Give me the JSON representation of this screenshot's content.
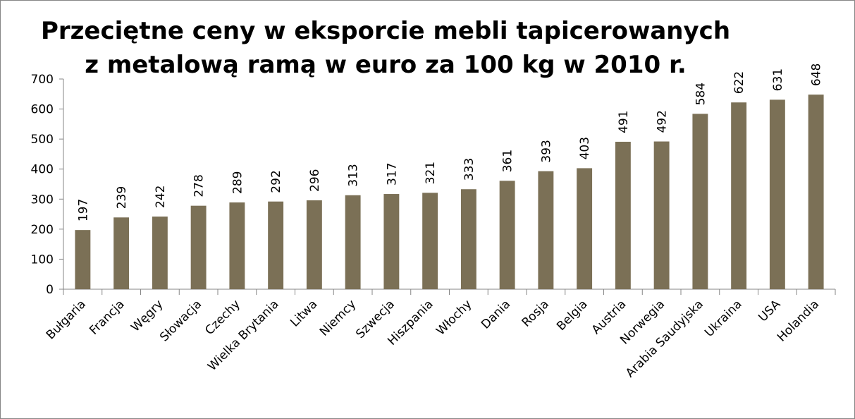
{
  "chart_data": {
    "type": "bar",
    "title": [
      "Przeciętne ceny w eksporcie mebli tapicerowanych",
      "z metalową ramą w euro za 100 kg w 2010 r."
    ],
    "categories": [
      "Bułgaria",
      "Francja",
      "Węgry",
      "Słowacja",
      "Czechy",
      "Wielka Brytania",
      "Litwa",
      "Niemcy",
      "Szwecja",
      "Hiszpania",
      "Włochy",
      "Dania",
      "Rosja",
      "Belgia",
      "Austria",
      "Norwegia",
      "Arabia Saudyjska",
      "Ukraina",
      "USA",
      "Holandia"
    ],
    "values": [
      197,
      239,
      242,
      278,
      289,
      292,
      296,
      313,
      317,
      321,
      333,
      361,
      393,
      403,
      491,
      492,
      584,
      622,
      631,
      648
    ],
    "color": "#7b7056",
    "ylim": [
      0,
      700
    ],
    "yticks": [
      0,
      100,
      200,
      300,
      400,
      500,
      600,
      700
    ],
    "grid": false
  }
}
